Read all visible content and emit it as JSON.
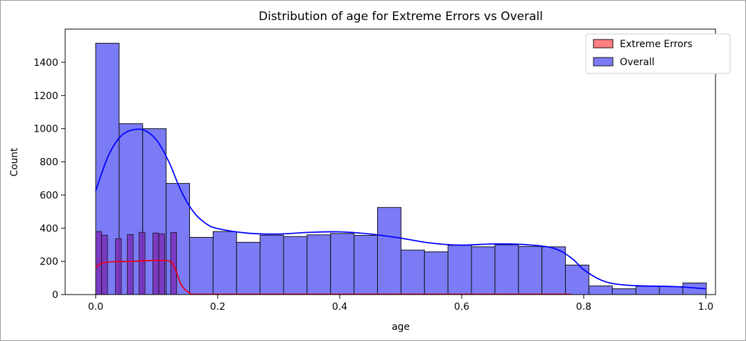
{
  "chart_data": {
    "type": "bar",
    "title": "Distribution of age for Extreme Errors vs Overall",
    "xlabel": "age",
    "ylabel": "Count",
    "xlim": [
      -0.05,
      1.016
    ],
    "ylim": [
      0,
      1600
    ],
    "xticks": [
      0.0,
      0.2,
      0.4,
      0.6,
      0.8,
      1.0
    ],
    "xtick_labels": [
      "0.0",
      "0.2",
      "0.4",
      "0.6",
      "0.8",
      "1.0"
    ],
    "yticks": [
      0,
      200,
      400,
      600,
      800,
      1000,
      1200,
      1400
    ],
    "ytick_labels": [
      "0",
      "200",
      "400",
      "600",
      "800",
      "1000",
      "1200",
      "1400"
    ],
    "grid": false,
    "legend_position": "top-right",
    "colors": {
      "overall_bar": "#7b7bf5",
      "overall_line": "#0000ff",
      "extreme_bar": "#7a2fb8",
      "extreme_line": "#e8001c",
      "extreme_legend_fill": "#ff8080",
      "bar_edge": "#111111"
    },
    "series": [
      {
        "name": "Extreme Errors",
        "bin_width": 0.0097,
        "bins": [
          {
            "x0": 0.0,
            "count": 380
          },
          {
            "x0": 0.0097,
            "count": 358
          },
          {
            "x0": 0.0324,
            "count": 337
          },
          {
            "x0": 0.0518,
            "count": 362
          },
          {
            "x0": 0.0712,
            "count": 375
          },
          {
            "x0": 0.0938,
            "count": 371
          },
          {
            "x0": 0.1035,
            "count": 365
          },
          {
            "x0": 0.1229,
            "count": 374
          }
        ],
        "kde": [
          [
            0.0,
            162
          ],
          [
            0.01,
            190
          ],
          [
            0.03,
            198
          ],
          [
            0.06,
            200
          ],
          [
            0.09,
            205
          ],
          [
            0.12,
            202
          ],
          [
            0.13,
            160
          ],
          [
            0.14,
            60
          ],
          [
            0.155,
            8
          ],
          [
            0.17,
            2
          ],
          [
            0.3,
            2
          ],
          [
            0.5,
            2
          ],
          [
            0.78,
            2
          ]
        ]
      },
      {
        "name": "Overall",
        "bin_width": 0.0385,
        "bins": [
          {
            "x0": 0.0,
            "count": 1515
          },
          {
            "x0": 0.0385,
            "count": 1030
          },
          {
            "x0": 0.077,
            "count": 1000
          },
          {
            "x0": 0.1155,
            "count": 670
          },
          {
            "x0": 0.154,
            "count": 345
          },
          {
            "x0": 0.1925,
            "count": 380
          },
          {
            "x0": 0.231,
            "count": 315
          },
          {
            "x0": 0.2695,
            "count": 358
          },
          {
            "x0": 0.308,
            "count": 350
          },
          {
            "x0": 0.3465,
            "count": 360
          },
          {
            "x0": 0.385,
            "count": 368
          },
          {
            "x0": 0.4235,
            "count": 357
          },
          {
            "x0": 0.462,
            "count": 525
          },
          {
            "x0": 0.5005,
            "count": 268
          },
          {
            "x0": 0.539,
            "count": 258
          },
          {
            "x0": 0.5775,
            "count": 297
          },
          {
            "x0": 0.616,
            "count": 288
          },
          {
            "x0": 0.6545,
            "count": 300
          },
          {
            "x0": 0.693,
            "count": 290
          },
          {
            "x0": 0.7315,
            "count": 288
          },
          {
            "x0": 0.77,
            "count": 178
          },
          {
            "x0": 0.8085,
            "count": 52
          },
          {
            "x0": 0.847,
            "count": 35
          },
          {
            "x0": 0.8855,
            "count": 50
          },
          {
            "x0": 0.924,
            "count": 48
          },
          {
            "x0": 0.9625,
            "count": 70
          }
        ],
        "kde": [
          [
            0.0,
            625
          ],
          [
            0.02,
            830
          ],
          [
            0.04,
            950
          ],
          [
            0.06,
            992
          ],
          [
            0.08,
            990
          ],
          [
            0.1,
            930
          ],
          [
            0.12,
            800
          ],
          [
            0.14,
            625
          ],
          [
            0.16,
            500
          ],
          [
            0.18,
            430
          ],
          [
            0.2,
            398
          ],
          [
            0.25,
            370
          ],
          [
            0.3,
            365
          ],
          [
            0.35,
            375
          ],
          [
            0.4,
            378
          ],
          [
            0.45,
            365
          ],
          [
            0.5,
            340
          ],
          [
            0.55,
            310
          ],
          [
            0.6,
            298
          ],
          [
            0.65,
            305
          ],
          [
            0.7,
            302
          ],
          [
            0.75,
            280
          ],
          [
            0.78,
            220
          ],
          [
            0.8,
            150
          ],
          [
            0.83,
            85
          ],
          [
            0.86,
            60
          ],
          [
            0.9,
            52
          ],
          [
            0.95,
            48
          ],
          [
            1.0,
            35
          ]
        ]
      }
    ]
  }
}
